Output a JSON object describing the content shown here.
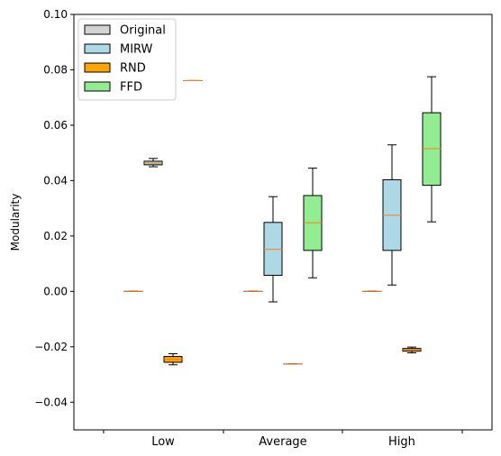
{
  "chart_data": {
    "type": "box",
    "ylabel": "Modularity",
    "xlabel": "",
    "ylim": [
      -0.05,
      0.1
    ],
    "yticks": [
      -0.04,
      -0.02,
      0.0,
      0.02,
      0.04,
      0.06,
      0.08,
      0.1
    ],
    "ytick_labels": [
      "−0.04",
      "−0.02",
      "0.00",
      "0.02",
      "0.04",
      "0.06",
      "0.08",
      "0.10"
    ],
    "categories": [
      "Low",
      "Average",
      "High"
    ],
    "grid": false,
    "legend_position": "top-left",
    "median_color": "#ff7f0e",
    "series": [
      {
        "name": "Original",
        "color": "#d3d3d3",
        "boxes": [
          {
            "min": 0.0,
            "q1": 0.0,
            "median": 0.0,
            "q3": 0.0,
            "max": 0.0
          },
          {
            "min": 0.0,
            "q1": 0.0,
            "median": 0.0,
            "q3": 0.0,
            "max": 0.0
          },
          {
            "min": 0.0,
            "q1": 0.0,
            "median": 0.0,
            "q3": 0.0,
            "max": 0.0
          }
        ]
      },
      {
        "name": "MIRW",
        "color": "#add8e6",
        "boxes": [
          {
            "min": 0.045,
            "q1": 0.0457,
            "median": 0.0463,
            "q3": 0.047,
            "max": 0.048
          },
          {
            "min": -0.0038,
            "q1": 0.0058,
            "median": 0.0152,
            "q3": 0.0249,
            "max": 0.0342
          },
          {
            "min": 0.0023,
            "q1": 0.0148,
            "median": 0.0275,
            "q3": 0.0403,
            "max": 0.0529
          }
        ]
      },
      {
        "name": "RND",
        "color": "#ffa500",
        "boxes": [
          {
            "min": -0.0265,
            "q1": -0.0256,
            "median": -0.0245,
            "q3": -0.0235,
            "max": -0.0225
          },
          {
            "min": -0.0262,
            "q1": -0.0262,
            "median": -0.0262,
            "q3": -0.0262,
            "max": -0.0262
          },
          {
            "min": -0.0222,
            "q1": -0.0216,
            "median": -0.0211,
            "q3": -0.0206,
            "max": -0.0201
          }
        ]
      },
      {
        "name": "FFD",
        "color": "#90ee90",
        "boxes": [
          {
            "min": 0.0761,
            "q1": 0.0761,
            "median": 0.0761,
            "q3": 0.0761,
            "max": 0.0761
          },
          {
            "min": 0.0049,
            "q1": 0.0148,
            "median": 0.0248,
            "q3": 0.0346,
            "max": 0.0445
          },
          {
            "min": 0.0251,
            "q1": 0.0383,
            "median": 0.0515,
            "q3": 0.0645,
            "max": 0.0775
          }
        ]
      }
    ]
  }
}
